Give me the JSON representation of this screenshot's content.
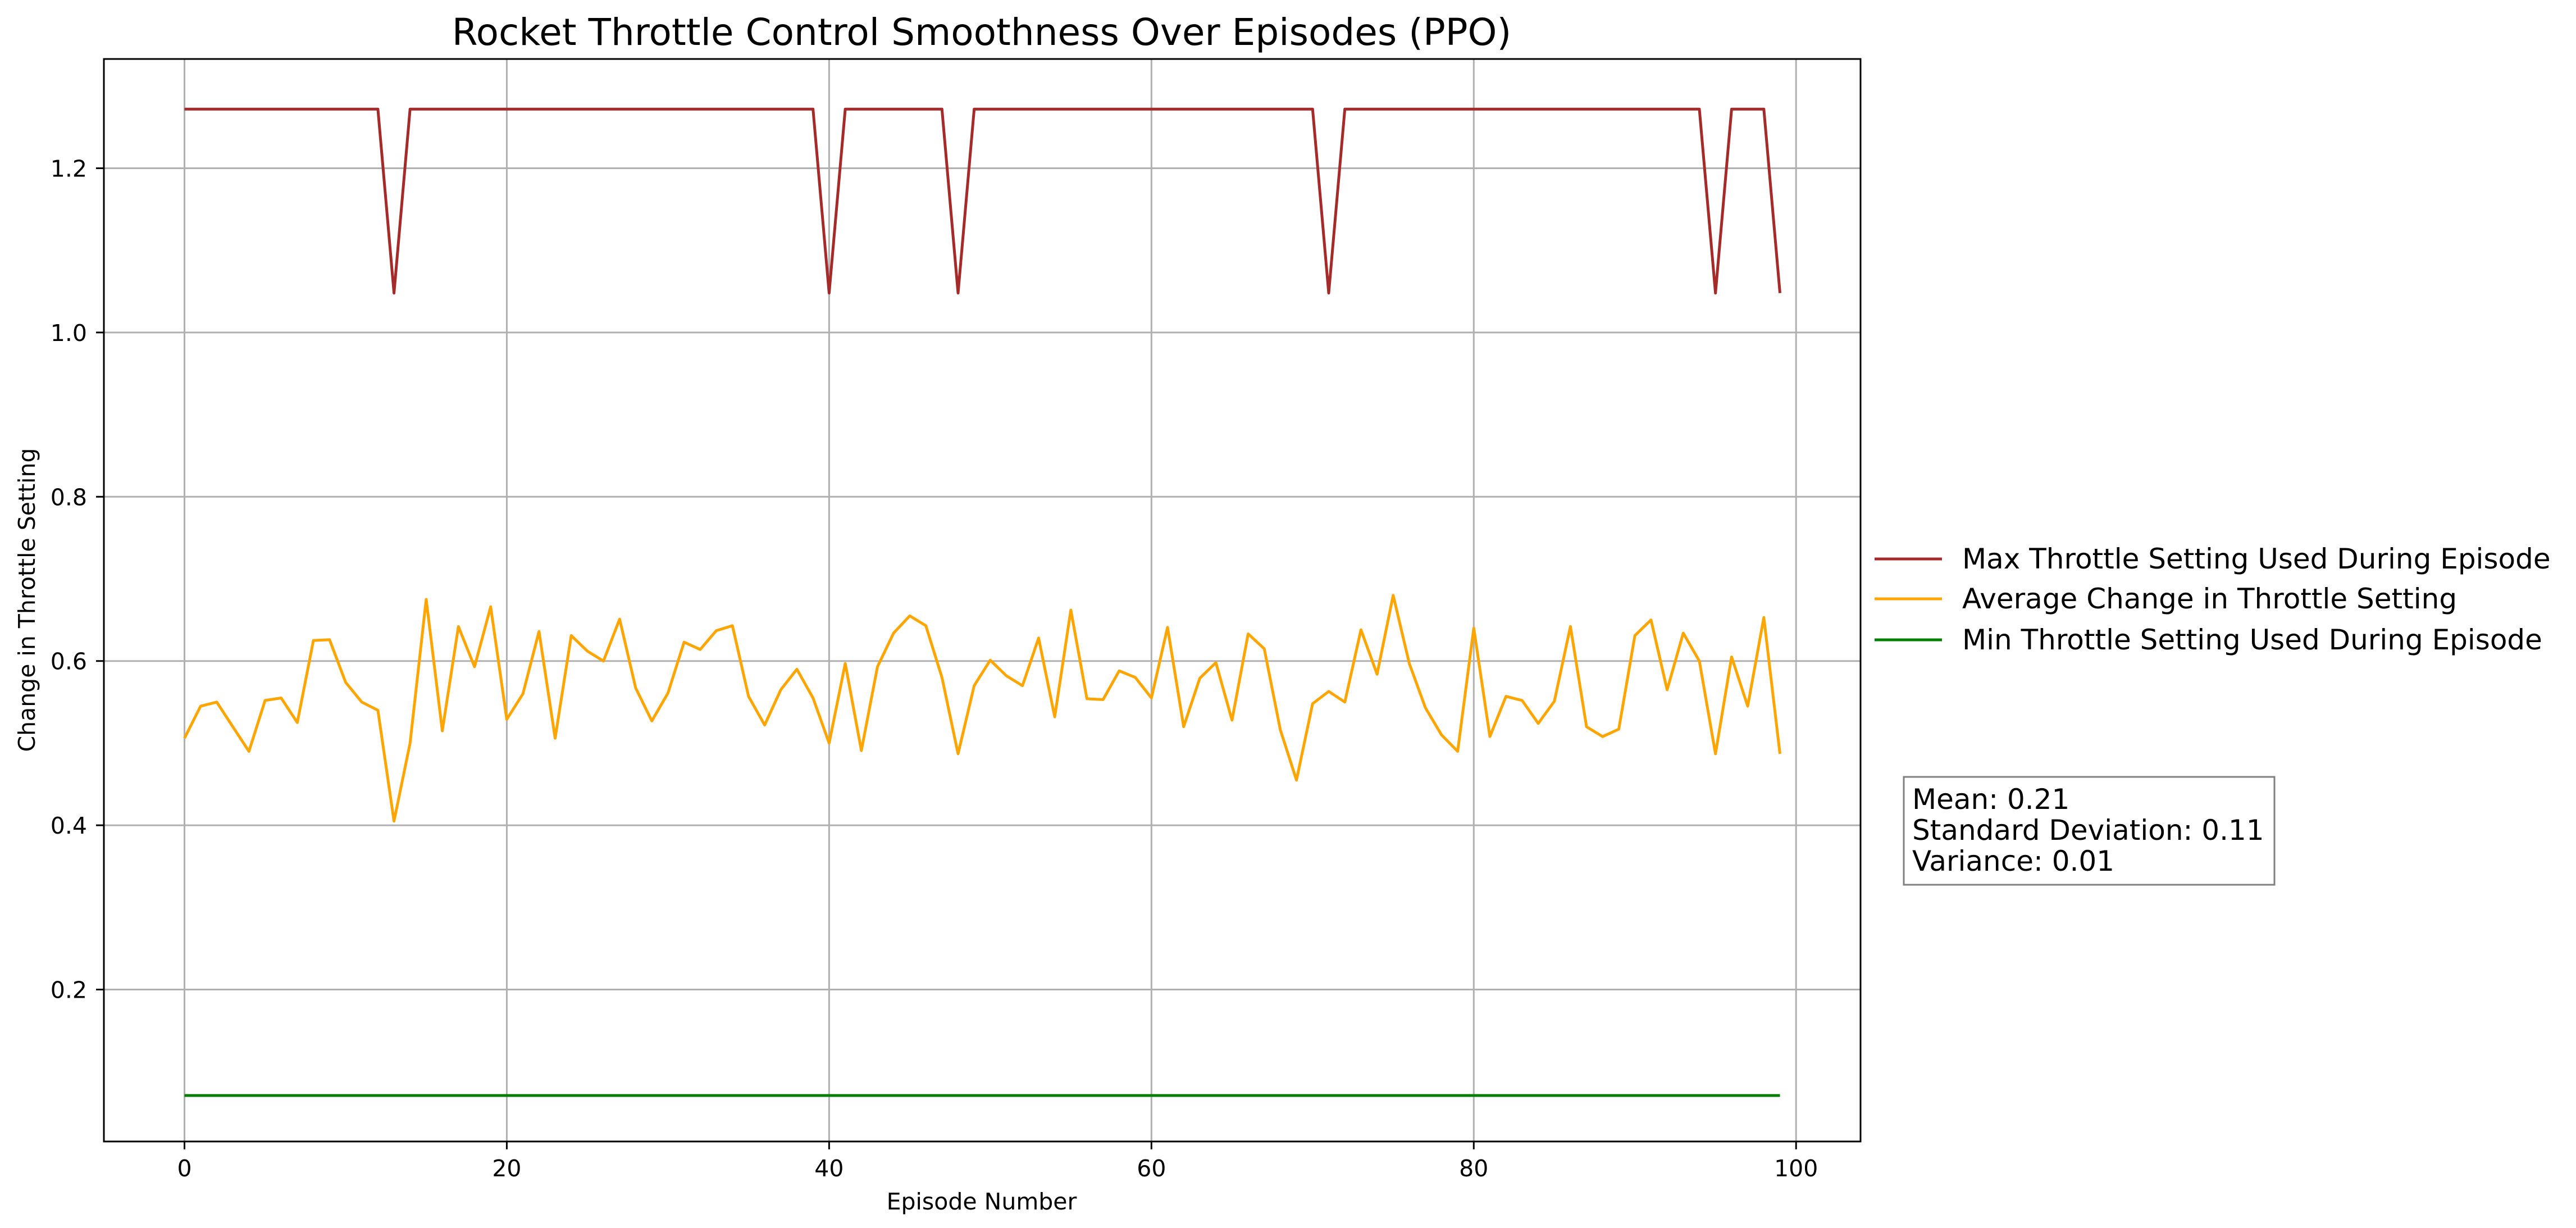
{
  "chart_data": {
    "type": "line",
    "title": "Rocket Throttle Control Smoothness Over Episodes (PPO)",
    "xlabel": "Episode Number",
    "ylabel": "Change in Throttle Setting",
    "xlim": [
      -5,
      104
    ],
    "ylim": [
      0.015,
      1.333
    ],
    "x_ticks": [
      0,
      20,
      40,
      60,
      80,
      100
    ],
    "y_ticks": [
      0.2,
      0.4,
      0.6,
      0.8,
      1.0,
      1.2
    ],
    "x_tick_labels": [
      "0",
      "20",
      "40",
      "60",
      "80",
      "100"
    ],
    "y_tick_labels": [
      "0.2",
      "0.4",
      "0.6",
      "0.8",
      "1.0",
      "1.2"
    ],
    "grid": true,
    "legend_position": "outside-right",
    "series": [
      {
        "name": "Max Throttle Setting Used During Episode",
        "color": "#a52a2a",
        "values": [
          1.272,
          1.272,
          1.272,
          1.272,
          1.272,
          1.272,
          1.272,
          1.272,
          1.272,
          1.272,
          1.272,
          1.272,
          1.272,
          1.048,
          1.272,
          1.272,
          1.272,
          1.272,
          1.272,
          1.272,
          1.272,
          1.272,
          1.272,
          1.272,
          1.272,
          1.272,
          1.272,
          1.272,
          1.272,
          1.272,
          1.272,
          1.272,
          1.272,
          1.272,
          1.272,
          1.272,
          1.272,
          1.272,
          1.272,
          1.272,
          1.048,
          1.272,
          1.272,
          1.272,
          1.272,
          1.272,
          1.272,
          1.272,
          1.048,
          1.272,
          1.272,
          1.272,
          1.272,
          1.272,
          1.272,
          1.272,
          1.272,
          1.272,
          1.272,
          1.272,
          1.272,
          1.272,
          1.272,
          1.272,
          1.272,
          1.272,
          1.272,
          1.272,
          1.272,
          1.272,
          1.272,
          1.048,
          1.272,
          1.272,
          1.272,
          1.272,
          1.272,
          1.272,
          1.272,
          1.272,
          1.272,
          1.272,
          1.272,
          1.272,
          1.272,
          1.272,
          1.272,
          1.272,
          1.272,
          1.272,
          1.272,
          1.272,
          1.272,
          1.272,
          1.272,
          1.048,
          1.272,
          1.272,
          1.272,
          1.048
        ]
      },
      {
        "name": "Average Change in Throttle Setting",
        "color": "#ffa500",
        "values": [
          0.506,
          0.545,
          0.55,
          0.52,
          0.49,
          0.552,
          0.555,
          0.525,
          0.625,
          0.626,
          0.574,
          0.55,
          0.54,
          0.405,
          0.5,
          0.675,
          0.515,
          0.642,
          0.593,
          0.666,
          0.529,
          0.56,
          0.636,
          0.506,
          0.631,
          0.612,
          0.6,
          0.651,
          0.567,
          0.527,
          0.561,
          0.623,
          0.614,
          0.637,
          0.643,
          0.557,
          0.522,
          0.565,
          0.59,
          0.555,
          0.5,
          0.597,
          0.491,
          0.593,
          0.634,
          0.655,
          0.643,
          0.58,
          0.487,
          0.57,
          0.601,
          0.582,
          0.57,
          0.628,
          0.532,
          0.662,
          0.554,
          0.553,
          0.588,
          0.58,
          0.555,
          0.641,
          0.52,
          0.579,
          0.598,
          0.528,
          0.633,
          0.615,
          0.516,
          0.455,
          0.548,
          0.563,
          0.55,
          0.638,
          0.584,
          0.68,
          0.597,
          0.543,
          0.51,
          0.49,
          0.64,
          0.508,
          0.557,
          0.552,
          0.524,
          0.551,
          0.642,
          0.52,
          0.508,
          0.517,
          0.631,
          0.65,
          0.565,
          0.634,
          0.6,
          0.487,
          0.605,
          0.545,
          0.653,
          0.487
        ]
      },
      {
        "name": "Min Throttle Setting Used During Episode",
        "color": "#008000",
        "values": [
          0.071,
          0.071,
          0.071,
          0.071,
          0.071,
          0.071,
          0.071,
          0.071,
          0.071,
          0.071,
          0.071,
          0.071,
          0.071,
          0.071,
          0.071,
          0.071,
          0.071,
          0.071,
          0.071,
          0.071,
          0.071,
          0.071,
          0.071,
          0.071,
          0.071,
          0.071,
          0.071,
          0.071,
          0.071,
          0.071,
          0.071,
          0.071,
          0.071,
          0.071,
          0.071,
          0.071,
          0.071,
          0.071,
          0.071,
          0.071,
          0.071,
          0.071,
          0.071,
          0.071,
          0.071,
          0.071,
          0.071,
          0.071,
          0.071,
          0.071,
          0.071,
          0.071,
          0.071,
          0.071,
          0.071,
          0.071,
          0.071,
          0.071,
          0.071,
          0.071,
          0.071,
          0.071,
          0.071,
          0.071,
          0.071,
          0.071,
          0.071,
          0.071,
          0.071,
          0.071,
          0.071,
          0.071,
          0.071,
          0.071,
          0.071,
          0.071,
          0.071,
          0.071,
          0.071,
          0.071,
          0.071,
          0.071,
          0.071,
          0.071,
          0.071,
          0.071,
          0.071,
          0.071,
          0.071,
          0.071,
          0.071,
          0.071,
          0.071,
          0.071,
          0.071,
          0.071,
          0.071,
          0.071,
          0.071,
          0.071
        ]
      }
    ],
    "annotations": {
      "mean": "Mean: 0.21",
      "std": "Standard Deviation: 0.11",
      "variance": "Variance: 0.01"
    }
  }
}
